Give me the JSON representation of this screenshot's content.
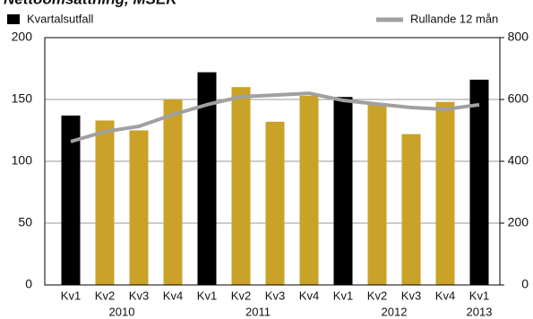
{
  "chart_data": {
    "type": "bar_line",
    "title": "Nettoomsättning, MSEK",
    "categories": [
      "Kv1",
      "Kv2",
      "Kv3",
      "Kv4",
      "Kv1",
      "Kv2",
      "Kv3",
      "Kv4",
      "Kv1",
      "Kv2",
      "Kv3",
      "Kv4",
      "Kv1"
    ],
    "year_groups": [
      {
        "label": "2010",
        "count": 4
      },
      {
        "label": "2011",
        "count": 4
      },
      {
        "label": "2012",
        "count": 4
      },
      {
        "label": "2013",
        "count": 1
      }
    ],
    "series": [
      {
        "name": "Kvartalsutfall",
        "type": "bar",
        "color": "#000000",
        "bar_colors": [
          "#000000",
          "#c9a227",
          "#c9a227",
          "#c9a227",
          "#000000",
          "#c9a227",
          "#c9a227",
          "#c9a227",
          "#000000",
          "#c9a227",
          "#c9a227",
          "#c9a227",
          "#000000"
        ],
        "values": [
          137,
          133,
          125,
          150,
          172,
          160,
          132,
          153,
          152,
          146,
          122,
          148,
          166
        ]
      },
      {
        "name": "Rullande 12 mån",
        "type": "line",
        "color": "#a0a0a0",
        "axis": "y2",
        "values": [
          464,
          496,
          513,
          551,
          583,
          609,
          614,
          620,
          597,
          585,
          574,
          568,
          583
        ]
      }
    ],
    "ylim": [
      0,
      200
    ],
    "yticks": [
      0,
      50,
      100,
      150,
      200
    ],
    "y2lim": [
      0,
      800
    ],
    "y2ticks": [
      0,
      200,
      400,
      600,
      800
    ],
    "grid": true
  }
}
